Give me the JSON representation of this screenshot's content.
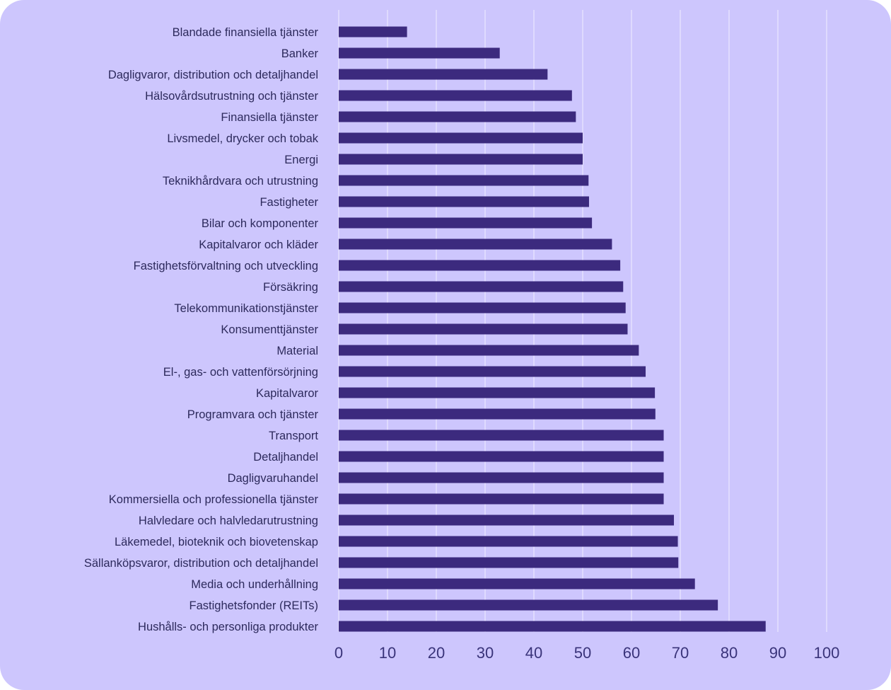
{
  "chart_data": {
    "type": "bar",
    "orientation": "horizontal",
    "categories": [
      "Blandade finansiella tjänster",
      "Banker",
      "Dagligvaror, distribution och detaljhandel",
      "Hälsovårdsutrustning och tjänster",
      "Finansiella tjänster",
      "Livsmedel, drycker och tobak",
      "Energi",
      "Teknikhårdvara och utrustning",
      "Fastigheter",
      "Bilar och komponenter",
      "Kapitalvaror och kläder",
      "Fastighetsförvaltning och utveckling",
      "Försäkring",
      "Telekommunikationstjänster",
      "Konsumenttjänster",
      "Material",
      "El-, gas- och vattenförsörjning",
      "Kapitalvaror",
      "Programvara och tjänster",
      "Transport",
      "Detaljhandel",
      "Dagligvaruhandel",
      "Kommersiella och professionella tjänster",
      "Halvledare och halvledarutrustning",
      "Läkemedel, bioteknik och biovetenskap",
      "Sällanköpsvaror, distribution och detaljhandel",
      "Media och underhållning",
      "Fastighetsfonder (REITs)",
      "Hushålls- och personliga produkter"
    ],
    "values": [
      14,
      33,
      42.8,
      47.8,
      48.6,
      50,
      50,
      51.2,
      51.3,
      51.9,
      56,
      57.7,
      58.3,
      58.8,
      59.2,
      61.5,
      62.9,
      64.8,
      64.9,
      66.6,
      66.6,
      66.6,
      66.6,
      68.7,
      69.5,
      69.6,
      73,
      77.7,
      87.5
    ],
    "xlim": [
      0,
      100
    ],
    "xticks": [
      "0",
      "10",
      "20",
      "30",
      "40",
      "50",
      "60",
      "70",
      "80",
      "90",
      "100"
    ],
    "grid": true,
    "colors": {
      "bar": "#3c2a7e",
      "background": "#cdc6fd",
      "grid": "#ebe8ff"
    }
  }
}
